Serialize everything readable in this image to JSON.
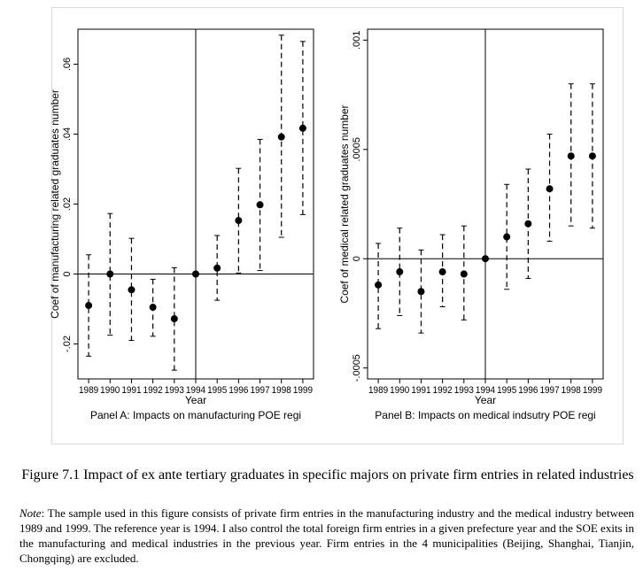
{
  "caption": "Figure 7.1 Impact of ex ante tertiary graduates in specific majors on private firm entries in related industries",
  "note": {
    "label": "Note",
    "text": ": The sample used in this figure consists of private firm entries in the manufacturing industry and the medical industry between 1989 and 1999. The reference year is 1994. I also control the total foreign firm entries in a given prefecture year and the SOE exits in the manufacturing and medical industries in the previous year. Firm entries in the 4 municipalities (Beijing, Shanghai, Tianjin, Chongqing) are excluded."
  },
  "chart_data": [
    {
      "type": "scatter",
      "panel": "Panel A: Impacts on manufacturing POE regi",
      "xlabel": "Year",
      "ylabel": "Coef of manufacturing related graduates number",
      "categories": [
        "1989",
        "1990",
        "1991",
        "1992",
        "1993",
        "1994",
        "1995",
        "1996",
        "1997",
        "1998",
        "1999"
      ],
      "ylim": [
        -0.03,
        0.07
      ],
      "yticks": [
        -0.02,
        0,
        0.02,
        0.04,
        0.06
      ],
      "ytick_labels": [
        "-.02",
        "0",
        ".02",
        ".04",
        ".06"
      ],
      "reference_year": "1994",
      "series": [
        {
          "values": [
            -0.009,
            0.0,
            -0.0045,
            -0.0095,
            -0.0128,
            0.0,
            0.0017,
            0.0153,
            0.0198,
            0.0392,
            0.0417
          ],
          "ci_low": [
            -0.0235,
            -0.0175,
            -0.019,
            -0.0178,
            -0.0275,
            0.0,
            -0.0075,
            0.0003,
            0.001,
            0.0105,
            0.017
          ],
          "ci_high": [
            0.0055,
            0.0173,
            0.0102,
            -0.0015,
            0.0018,
            0.0,
            0.011,
            0.0302,
            0.0385,
            0.0683,
            0.0665
          ]
        }
      ],
      "grid": false,
      "legend": "none"
    },
    {
      "type": "scatter",
      "panel": "Panel B: Impacts on medical indsutry POE regi",
      "xlabel": "Year",
      "ylabel": "Coef of medical related graduates number",
      "categories": [
        "1989",
        "1990",
        "1991",
        "1992",
        "1993",
        "1994",
        "1995",
        "1996",
        "1997",
        "1998",
        "1999"
      ],
      "ylim": [
        -0.00055,
        0.00105
      ],
      "yticks": [
        -0.0005,
        0,
        0.0005,
        0.001
      ],
      "ytick_labels": [
        "-.0005",
        "0",
        ".0005",
        ".001"
      ],
      "reference_year": "1994",
      "series": [
        {
          "values": [
            -0.00012,
            -6e-05,
            -0.00015,
            -6e-05,
            -7e-05,
            0.0,
            0.0001,
            0.00016,
            0.00032,
            0.00047,
            0.00047
          ],
          "ci_low": [
            -0.00032,
            -0.00026,
            -0.00034,
            -0.00022,
            -0.00028,
            0.0,
            -0.00014,
            -9e-05,
            8e-05,
            0.00015,
            0.00014
          ],
          "ci_high": [
            7e-05,
            0.00014,
            4e-05,
            0.00011,
            0.00015,
            0.0,
            0.00034,
            0.00041,
            0.00057,
            0.0008,
            0.0008
          ]
        }
      ],
      "grid": false,
      "legend": "none"
    }
  ]
}
